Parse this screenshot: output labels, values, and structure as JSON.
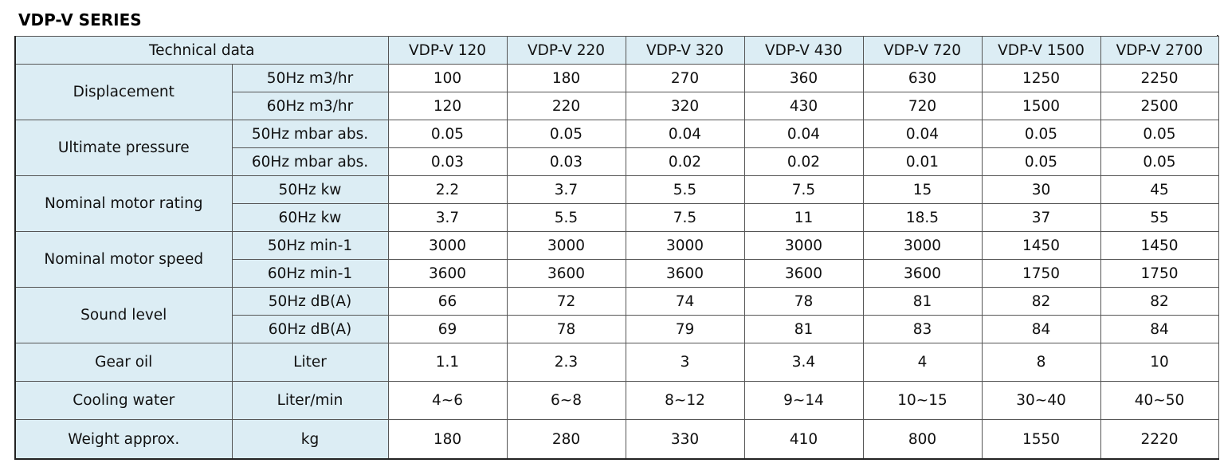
{
  "title": "VDP-V SERIES",
  "header": {
    "label": "Technical data",
    "models": [
      "VDP-V 120",
      "VDP-V 220",
      "VDP-V 320",
      "VDP-V 430",
      "VDP-V 720",
      "VDP-V 1500",
      "VDP-V 2700"
    ]
  },
  "groups": [
    {
      "label": "Displacement",
      "rows": [
        {
          "unit": "50Hz m3/hr",
          "values": [
            "100",
            "180",
            "270",
            "360",
            "630",
            "1250",
            "2250"
          ]
        },
        {
          "unit": "60Hz m3/hr",
          "values": [
            "120",
            "220",
            "320",
            "430",
            "720",
            "1500",
            "2500"
          ]
        }
      ]
    },
    {
      "label": "Ultimate pressure",
      "rows": [
        {
          "unit": "50Hz mbar abs.",
          "values": [
            "0.05",
            "0.05",
            "0.04",
            "0.04",
            "0.04",
            "0.05",
            "0.05"
          ]
        },
        {
          "unit": "60Hz mbar abs.",
          "values": [
            "0.03",
            "0.03",
            "0.02",
            "0.02",
            "0.01",
            "0.05",
            "0.05"
          ]
        }
      ]
    },
    {
      "label": "Nominal motor rating",
      "rows": [
        {
          "unit": "50Hz kw",
          "values": [
            "2.2",
            "3.7",
            "5.5",
            "7.5",
            "15",
            "30",
            "45"
          ]
        },
        {
          "unit": "60Hz kw",
          "values": [
            "3.7",
            "5.5",
            "7.5",
            "11",
            "18.5",
            "37",
            "55"
          ]
        }
      ]
    },
    {
      "label": "Nominal motor speed",
      "rows": [
        {
          "unit": "50Hz min-1",
          "values": [
            "3000",
            "3000",
            "3000",
            "3000",
            "3000",
            "1450",
            "1450"
          ]
        },
        {
          "unit": "60Hz min-1",
          "values": [
            "3600",
            "3600",
            "3600",
            "3600",
            "3600",
            "1750",
            "1750"
          ]
        }
      ]
    },
    {
      "label": "Sound level",
      "rows": [
        {
          "unit": "50Hz dB(A)",
          "values": [
            "66",
            "72",
            "74",
            "78",
            "81",
            "82",
            "82"
          ]
        },
        {
          "unit": "60Hz dB(A)",
          "values": [
            "69",
            "78",
            "79",
            "81",
            "83",
            "84",
            "84"
          ]
        }
      ]
    },
    {
      "label": "Gear oil",
      "rows": [
        {
          "unit": "Liter",
          "values": [
            "1.1",
            "2.3",
            "3",
            "3.4",
            "4",
            "8",
            "10"
          ]
        }
      ]
    },
    {
      "label": "Cooling water",
      "rows": [
        {
          "unit": "Liter/min",
          "values": [
            "4~6",
            "6~8",
            "8~12",
            "9~14",
            "10~15",
            "30~40",
            "40~50"
          ]
        }
      ]
    },
    {
      "label": "Weight approx.",
      "rows": [
        {
          "unit": "kg",
          "values": [
            "180",
            "280",
            "330",
            "410",
            "800",
            "1550",
            "2220"
          ]
        }
      ]
    }
  ],
  "colors": {
    "label_background": "#dcedf4",
    "value_background": "#ffffff",
    "border": "#555555"
  }
}
